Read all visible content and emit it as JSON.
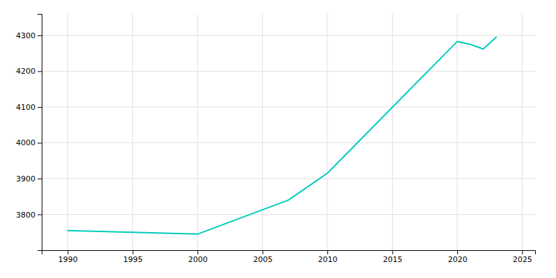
{
  "chart_data": {
    "type": "line",
    "x": [
      1990,
      2000,
      2007,
      2010,
      2020,
      2021,
      2022,
      2023
    ],
    "values": [
      3755,
      3745,
      3840,
      3915,
      4283,
      4275,
      4262,
      4295
    ],
    "color": "#00CCBB",
    "xlim": [
      1988,
      2026
    ],
    "ylim": [
      3700,
      4360
    ],
    "xticks": [
      1990,
      1995,
      2000,
      2005,
      2010,
      2015,
      2020,
      2025
    ],
    "yticks": [
      3800,
      3900,
      4000,
      4100,
      4200,
      4300
    ],
    "grid": true
  }
}
